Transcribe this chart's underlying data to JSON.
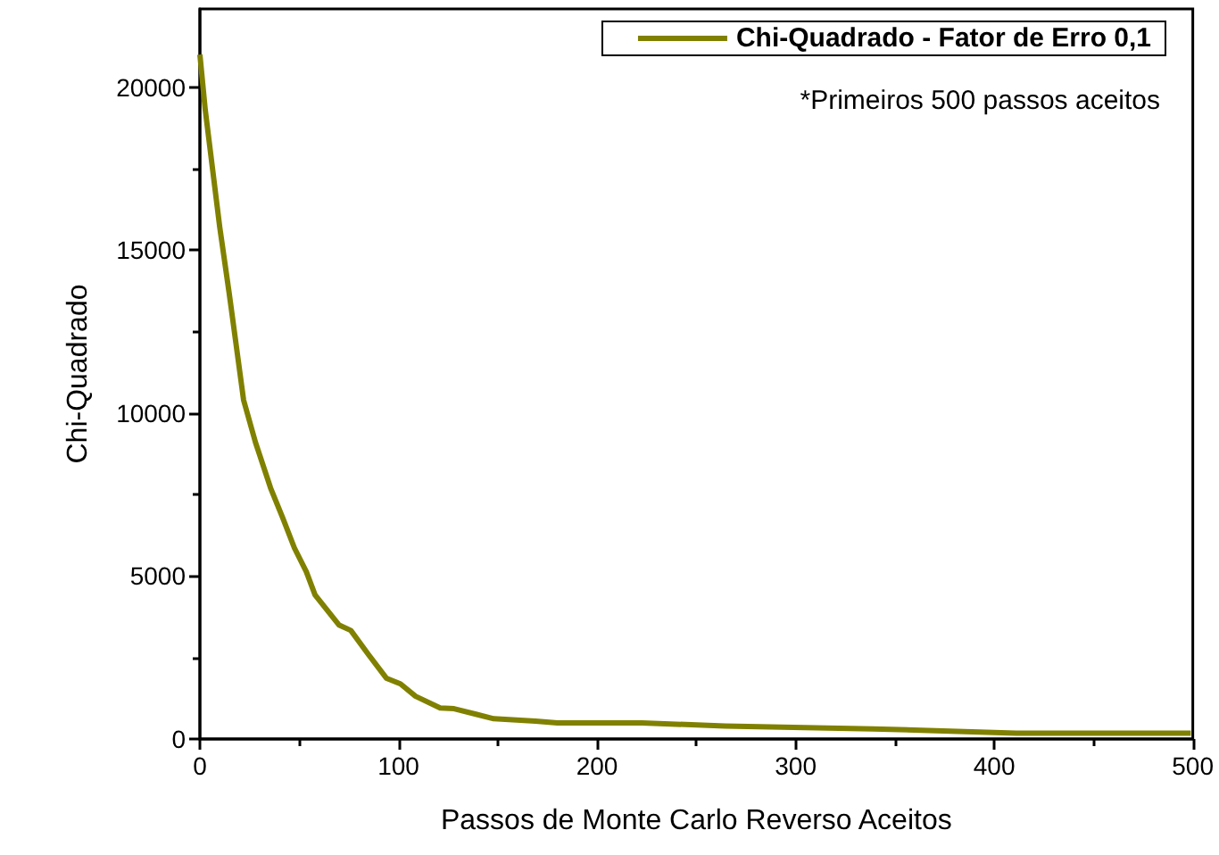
{
  "chart_data": {
    "type": "line",
    "xlabel": "Passos de Monte Carlo Reverso Aceitos",
    "ylabel": "Chi-Quadrado",
    "x": [
      0,
      2.7,
      10,
      14.7,
      22,
      28,
      35.6,
      41.6,
      47.6,
      53.6,
      58,
      70,
      76,
      85,
      94,
      101,
      108.6,
      121,
      128,
      139,
      148,
      169,
      180,
      222.6,
      264.5,
      339,
      411,
      499
    ],
    "series": [
      {
        "name": "Chi-Quadrado - Fator de Erro 0,1",
        "color": "#808000",
        "values": [
          21000,
          19300,
          15700,
          13700,
          10400,
          9100,
          7700,
          6800,
          5860,
          5130,
          4420,
          3500,
          3330,
          2580,
          1860,
          1690,
          1310,
          950,
          930,
          760,
          620,
          550,
          490,
          490,
          400,
          310,
          180,
          180
        ]
      }
    ],
    "xlim": [
      0,
      500
    ],
    "xticks": [
      0,
      100,
      200,
      300,
      400,
      500
    ],
    "ylim": [
      0,
      22400
    ],
    "yticks": [
      0,
      5000,
      10000,
      15000,
      20000
    ],
    "annotations": [
      "*Primeiros 500 passos aceitos"
    ],
    "legend": "top right",
    "grid": false,
    "marker": "none",
    "line_style": "solid"
  }
}
